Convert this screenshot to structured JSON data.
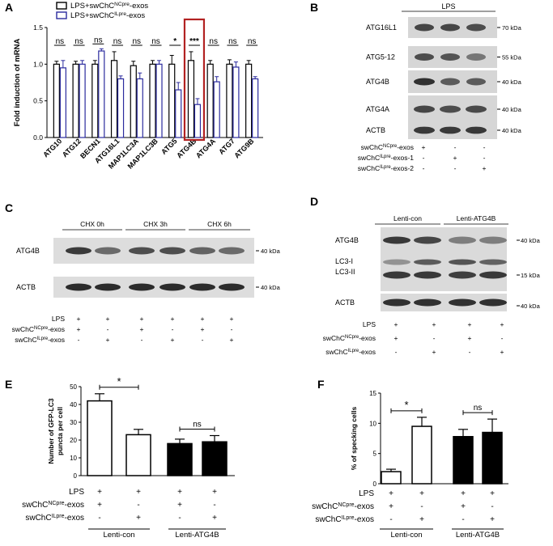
{
  "panels": {
    "A": {
      "letter": "A",
      "legend": [
        {
          "prefix": "LPS+swChC",
          "sup": "NCpre",
          "suffix": "-exos",
          "color": "#000000"
        },
        {
          "prefix": "LPS+swChC",
          "sup": "ILpre",
          "suffix": "-exos",
          "color": "#2b2b9e"
        }
      ],
      "highlight_color": "#b22222"
    },
    "B": {
      "letter": "B",
      "condition": "LPS",
      "bands": [
        {
          "label": "ATG16L1",
          "kda": "70 kDa"
        },
        {
          "label": "ATG5-12",
          "kda": "55 kDa"
        },
        {
          "label": "ATG4B",
          "kda": "40 kDa"
        },
        {
          "label": "ATG4A",
          "kda": "40 kDa"
        },
        {
          "label": "ACTB",
          "kda": "40 kDa"
        }
      ],
      "rows": [
        {
          "prefix": "swChC",
          "sup": "NCpre",
          "suffix": "-exos",
          "signs": [
            "+",
            "-",
            "-"
          ]
        },
        {
          "prefix": "swChC",
          "sup": "ILpre",
          "suffix": "-exos-1",
          "signs": [
            "-",
            "+",
            "-"
          ]
        },
        {
          "prefix": "swChC",
          "sup": "ILpre",
          "suffix": "-exos-2",
          "signs": [
            "-",
            "-",
            "+"
          ]
        }
      ]
    },
    "C": {
      "letter": "C",
      "groups": [
        "CHX 0h",
        "CHX 3h",
        "CHX 6h"
      ],
      "bands": [
        {
          "label": "ATG4B",
          "kda": "40 kDa"
        },
        {
          "label": "ACTB",
          "kda": "40 kDa"
        }
      ],
      "rows": [
        {
          "prefix": "LPS",
          "sup": "",
          "suffix": "",
          "signs": [
            "+",
            "+",
            "+",
            "+",
            "+",
            "+"
          ]
        },
        {
          "prefix": "swChC",
          "sup": "NCpre",
          "suffix": "-exos",
          "signs": [
            "+",
            "-",
            "+",
            "-",
            "+",
            "-"
          ]
        },
        {
          "prefix": "swChC",
          "sup": "ILpre",
          "suffix": "-exos",
          "signs": [
            "-",
            "+",
            "-",
            "+",
            "-",
            "+"
          ]
        }
      ]
    },
    "D": {
      "letter": "D",
      "groups": [
        "Lenti-con",
        "Lenti-ATG4B"
      ],
      "bands": [
        {
          "label": "ATG4B",
          "kda": "40 kDa"
        },
        {
          "label": "LC3-I",
          "kda": ""
        },
        {
          "label": "LC3-II",
          "kda": "15 kDa"
        },
        {
          "label": "ACTB",
          "kda": "40 kDa"
        }
      ],
      "rows": [
        {
          "prefix": "LPS",
          "sup": "",
          "suffix": "",
          "signs": [
            "+",
            "+",
            "+",
            "+"
          ]
        },
        {
          "prefix": "swChC",
          "sup": "NCpre",
          "suffix": "-exos",
          "signs": [
            "+",
            "-",
            "+",
            "-"
          ]
        },
        {
          "prefix": "swChC",
          "sup": "ILpre",
          "suffix": "-exos",
          "signs": [
            "-",
            "+",
            "-",
            "+"
          ]
        }
      ]
    },
    "E": {
      "letter": "E",
      "rows": [
        {
          "prefix": "LPS",
          "sup": "",
          "suffix": "",
          "signs": [
            "+",
            "+",
            "+",
            "+"
          ]
        },
        {
          "prefix": "swChC",
          "sup": "NCpre",
          "suffix": "-exos",
          "signs": [
            "+",
            "-",
            "+",
            "-"
          ]
        },
        {
          "prefix": "swChC",
          "sup": "ILpre",
          "suffix": "-exos",
          "signs": [
            "-",
            "+",
            "-",
            "+"
          ]
        }
      ],
      "groups": [
        "Lenti-con",
        "Lenti-ATG4B"
      ]
    },
    "F": {
      "letter": "F",
      "rows": [
        {
          "prefix": "LPS",
          "sup": "",
          "suffix": "",
          "signs": [
            "+",
            "+",
            "+",
            "+"
          ]
        },
        {
          "prefix": "swChC",
          "sup": "NCpre",
          "suffix": "-exos",
          "signs": [
            "+",
            "-",
            "+",
            "-"
          ]
        },
        {
          "prefix": "swChC",
          "sup": "ILpre",
          "suffix": "-exos",
          "signs": [
            "-",
            "+",
            "-",
            "+"
          ]
        }
      ],
      "groups": [
        "Lenti-con",
        "Lenti-ATG4B"
      ]
    }
  },
  "chart_data": [
    {
      "panel": "A",
      "type": "bar",
      "ylabel": "Fold induction of mRNA",
      "ylim": [
        0,
        1.5
      ],
      "yticks": [
        "0.0",
        "0.5",
        "1.0",
        "1.5"
      ],
      "categories": [
        "ATG10",
        "ATG12",
        "BECN1",
        "ATG16L1",
        "MAP1LC3A",
        "MAP1LC3B",
        "ATG5",
        "ATG4B",
        "ATG4A",
        "ATG7",
        "ATG9B"
      ],
      "series": [
        {
          "name": "LPS+swChCNCpre-exos",
          "values": [
            1.0,
            1.0,
            1.0,
            1.05,
            0.98,
            1.0,
            1.0,
            1.05,
            1.0,
            1.0,
            1.0
          ],
          "errors": [
            0.04,
            0.04,
            0.05,
            0.12,
            0.06,
            0.05,
            0.12,
            0.12,
            0.05,
            0.06,
            0.05
          ],
          "fill": "#ffffff",
          "stroke": "#000000"
        },
        {
          "name": "LPS+swChCILpre-exos",
          "values": [
            0.95,
            1.0,
            1.18,
            0.8,
            0.8,
            1.0,
            0.65,
            0.45,
            0.76,
            0.96,
            0.8
          ],
          "errors": [
            0.1,
            0.05,
            0.03,
            0.04,
            0.08,
            0.05,
            0.1,
            0.08,
            0.07,
            0.07,
            0.03
          ],
          "fill": "#ffffff",
          "stroke": "#2b2b9e"
        }
      ],
      "significance": [
        "ns",
        "ns",
        "ns",
        "ns",
        "ns",
        "ns",
        "*",
        "***",
        "ns",
        "ns",
        "ns"
      ]
    },
    {
      "panel": "E",
      "type": "bar",
      "ylabel_lines": [
        "Number of GFP-LC3",
        "puncta per cell"
      ],
      "ylim": [
        0,
        50
      ],
      "yticks": [
        "0",
        "10",
        "20",
        "30",
        "40",
        "50"
      ],
      "values": [
        42,
        23,
        18,
        19
      ],
      "errors": [
        4,
        3,
        2.5,
        3.5
      ],
      "fills": [
        "#ffffff",
        "#ffffff",
        "#000000",
        "#000000"
      ],
      "significance": [
        {
          "label": "*",
          "from": 0,
          "to": 1
        },
        {
          "label": "ns",
          "from": 2,
          "to": 3
        }
      ]
    },
    {
      "panel": "F",
      "type": "bar",
      "ylabel": "% of specking cells",
      "ylim": [
        0,
        15
      ],
      "yticks": [
        "0",
        "5",
        "10",
        "15"
      ],
      "values": [
        2.0,
        9.5,
        7.8,
        8.5
      ],
      "errors": [
        0.4,
        1.5,
        1.2,
        2.2
      ],
      "fills": [
        "#ffffff",
        "#ffffff",
        "#000000",
        "#000000"
      ],
      "significance": [
        {
          "label": "*",
          "from": 0,
          "to": 1
        },
        {
          "label": "ns",
          "from": 2,
          "to": 3
        }
      ]
    }
  ]
}
